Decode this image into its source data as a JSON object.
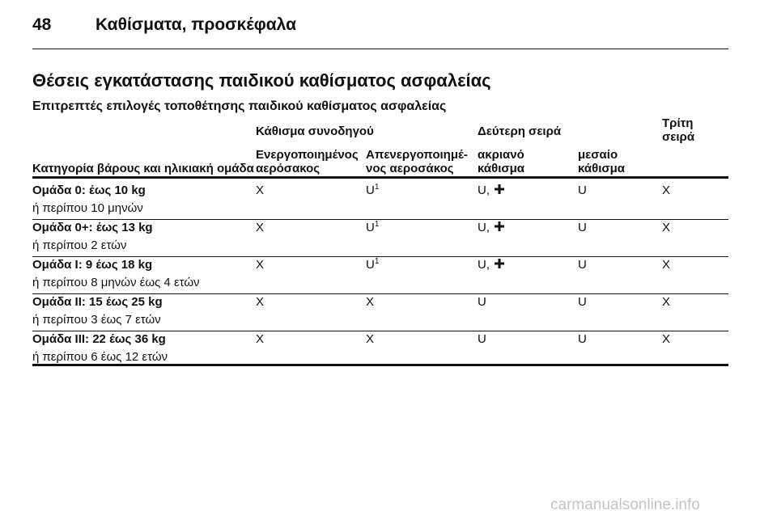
{
  "header": {
    "page_number": "48",
    "section": "Καθίσματα, προσκέφαλα"
  },
  "title": "Θέσεις εγκατάστασης παιδικού καθίσματος ασφαλείας",
  "subtitle": "Επιτρεπτές επιλογές τοποθέτησης παιδικού καθίσματος ασφαλείας",
  "table": {
    "group_headers": [
      "Κάθισμα συνοδηγού",
      "Δεύτερη σειρά"
    ],
    "third_row_header": [
      "Τρίτη",
      "σειρά"
    ],
    "column_headers": [
      [
        "Κατηγορία βάρους και ηλικιακή ομάδα"
      ],
      [
        "Ενεργοποιημένος",
        "αερόσακος"
      ],
      [
        "Απενεργοποιημέ-",
        "νος αεροσάκος"
      ],
      [
        "ακριανό",
        "κάθισμα"
      ],
      [
        "μεσαίο",
        "κάθισμα"
      ]
    ],
    "rows": [
      {
        "group": "Ομάδα 0: έως 10 kg",
        "age": "ή περίπου 10 μηνών",
        "cells": [
          {
            "text": "X"
          },
          {
            "text": "U",
            "sup": "1"
          },
          {
            "text": "U,",
            "icon": "plus"
          },
          {
            "text": "U"
          },
          {
            "text": "X"
          }
        ]
      },
      {
        "group": "Ομάδα 0+: έως 13 kg",
        "age": "ή περίπου 2 ετών",
        "cells": [
          {
            "text": "X"
          },
          {
            "text": "U",
            "sup": "1"
          },
          {
            "text": "U,",
            "icon": "plus"
          },
          {
            "text": "U"
          },
          {
            "text": "X"
          }
        ]
      },
      {
        "group": "Ομάδα I: 9 έως 18 kg",
        "age": "ή περίπου 8 μηνών έως 4 ετών",
        "cells": [
          {
            "text": "X"
          },
          {
            "text": "U",
            "sup": "1"
          },
          {
            "text": "U,",
            "icon": "plus"
          },
          {
            "text": "U"
          },
          {
            "text": "X"
          }
        ]
      },
      {
        "group": "Ομάδα II: 15 έως 25 kg",
        "age": "ή περίπου 3 έως 7 ετών",
        "cells": [
          {
            "text": "X"
          },
          {
            "text": "X"
          },
          {
            "text": "U"
          },
          {
            "text": "U"
          },
          {
            "text": "X"
          }
        ]
      },
      {
        "group": "Ομάδα III: 22 έως 36 kg",
        "age": "ή περίπου 6 έως 12 ετών",
        "cells": [
          {
            "text": "X"
          },
          {
            "text": "X"
          },
          {
            "text": "U"
          },
          {
            "text": "U"
          },
          {
            "text": "X"
          }
        ]
      }
    ]
  },
  "watermark": "carmanualsonline.info"
}
